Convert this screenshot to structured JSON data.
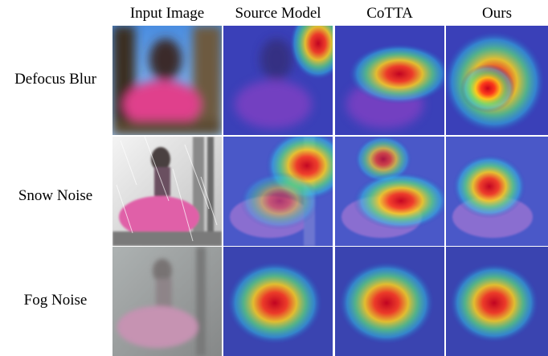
{
  "columns": [
    "Input Image",
    "Source Model",
    "CoTTA",
    "Ours"
  ],
  "rows": [
    {
      "label": "Defocus Blur"
    },
    {
      "label": "Snow Noise"
    },
    {
      "label": "Fog Noise"
    }
  ]
}
